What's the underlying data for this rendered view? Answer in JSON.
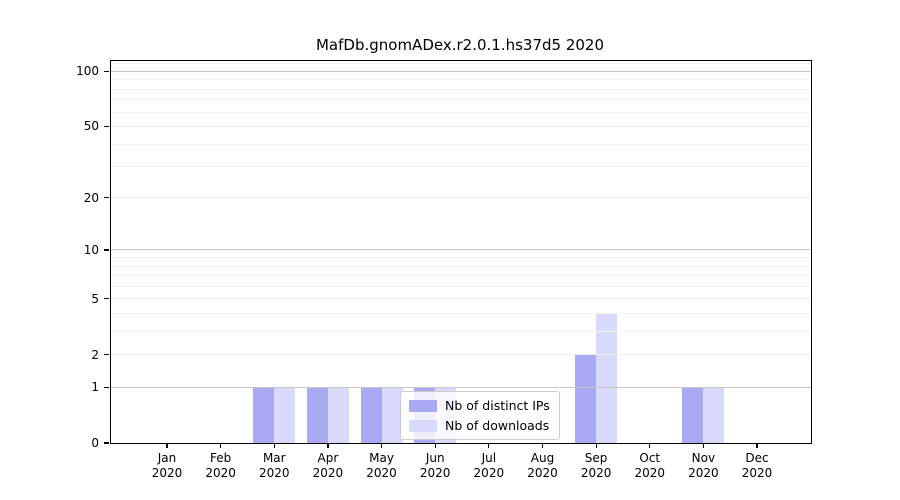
{
  "figure": {
    "title": "MafDb.gnomADex.r2.0.1.hs37d5 2020",
    "background": "#ffffff"
  },
  "legend": {
    "items": [
      {
        "label": "Nb of distinct IPs",
        "color": "#a8a8f3"
      },
      {
        "label": "Nb of downloads",
        "color": "#d9d9f9"
      }
    ]
  },
  "chart_data": {
    "type": "bar",
    "title": "MafDb.gnomADex.r2.0.1.hs37d5 2020",
    "categories": [
      "Jan 2020",
      "Feb 2020",
      "Mar 2020",
      "Apr 2020",
      "May 2020",
      "Jun 2020",
      "Jul 2020",
      "Aug 2020",
      "Sep 2020",
      "Oct 2020",
      "Nov 2020",
      "Dec 2020"
    ],
    "series": [
      {
        "name": "Nb of distinct IPs",
        "color": "#a8a8f3",
        "values": [
          0,
          0,
          1,
          1,
          1,
          1,
          0,
          0,
          2,
          0,
          1,
          0
        ]
      },
      {
        "name": "Nb of downloads",
        "color": "#d9d9f9",
        "values": [
          0,
          0,
          1,
          1,
          1,
          1,
          0,
          0,
          4,
          0,
          1,
          0
        ]
      }
    ],
    "xlabel": "",
    "ylabel": "",
    "y_scale": "log1p",
    "ylim": [
      0,
      114
    ],
    "yticks": [
      0,
      1,
      2,
      5,
      10,
      20,
      50,
      100
    ],
    "decade_yticks": [
      1,
      10,
      100
    ],
    "minor_yticks": [
      3,
      4,
      6,
      7,
      8,
      9,
      30,
      40,
      60,
      70,
      80,
      90,
      110
    ],
    "grid": "horizontal",
    "legend_position": "inside lower center-right",
    "colors": {
      "decade_grid": "#c8c8c8",
      "sub_grid": "#ececec",
      "minor_grid": "#f2f2f2",
      "spine": "#000000",
      "text": "#000000"
    }
  }
}
